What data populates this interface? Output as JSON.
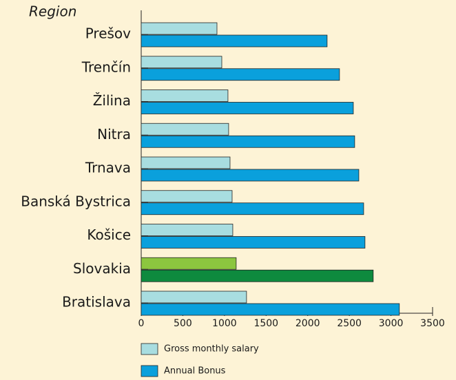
{
  "chart_data": {
    "type": "bar",
    "orientation": "horizontal",
    "y_axis_label": "Region",
    "categories": [
      "Prešov",
      "Trenčín",
      "Žilina",
      "Nitra",
      "Trnava",
      "Banská Bystrica",
      "Košice",
      "Slovakia",
      "Bratislava"
    ],
    "series": [
      {
        "name": "Gross monthly salary",
        "color": "#a8dde0",
        "values": [
          910,
          968,
          1042,
          1050,
          1067,
          1092,
          1100,
          1141,
          1265
        ]
      },
      {
        "name": "Annual Bonus",
        "color": "#0aa0dc",
        "values": [
          2233,
          2382,
          2548,
          2564,
          2614,
          2672,
          2688,
          2787,
          3101
        ]
      }
    ],
    "highlight": {
      "category": "Slovakia",
      "label_color": "#1e9a3c",
      "colors": [
        "#8cc63f",
        "#0e8a3e"
      ]
    },
    "xlim": [
      0,
      3500
    ],
    "xticks": [
      0,
      500,
      1000,
      1500,
      2000,
      2500,
      3000,
      3500
    ],
    "legend": "bottom"
  }
}
